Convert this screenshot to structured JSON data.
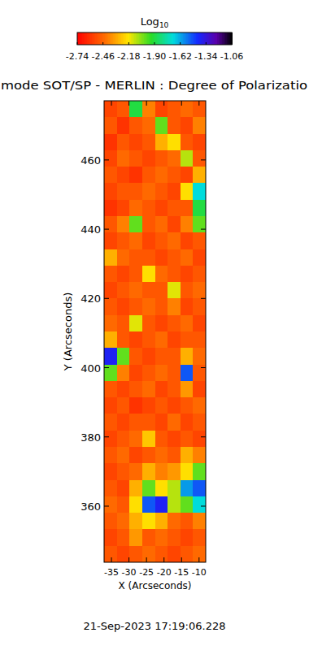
{
  "chart_data": {
    "type": "heatmap",
    "title": "mode SOT/SP - MERLIN : Degree of Polarizatio",
    "xlabel": "X (Arcseconds)",
    "ylabel": "Y (Arcseconds)",
    "date": "21-Sep-2023 17:19:06.228",
    "xlim": [
      -37.1,
      -8.1
    ],
    "ylim": [
      343.8,
      477.1
    ],
    "xticks": [
      -35,
      -30,
      -25,
      -20,
      -15,
      -10
    ],
    "yticks": [
      360,
      380,
      400,
      420,
      440,
      460
    ],
    "color_label": "Log10",
    "color_range": [
      -2.74,
      -1.06
    ],
    "color_ticks": [
      -2.74,
      -2.46,
      -2.18,
      {
        "value": -1.9,
        "label": "-1.90"
      },
      -1.62,
      -1.34,
      -1.06
    ],
    "cells": [
      [
        -2.55,
        -2.5,
        -1.9,
        -2.4,
        -2.55,
        -2.5,
        -2.45,
        -2.5
      ],
      [
        -2.5,
        -2.6,
        -2.5,
        -2.45,
        -2.0,
        -2.5,
        -2.55,
        -2.4
      ],
      [
        -2.6,
        -2.5,
        -2.55,
        -2.5,
        -2.3,
        -2.2,
        -2.5,
        -2.55
      ],
      [
        -2.55,
        -2.45,
        -2.5,
        -2.55,
        -2.5,
        -2.45,
        -2.1,
        -2.5
      ],
      [
        -2.5,
        -2.55,
        -2.6,
        -2.5,
        -2.45,
        -2.5,
        -2.55,
        -2.3
      ],
      [
        -2.55,
        -2.5,
        -2.5,
        -2.45,
        -2.5,
        -2.55,
        -2.2,
        -1.7
      ],
      [
        -2.6,
        -2.55,
        -2.45,
        -2.5,
        -2.55,
        -2.5,
        -2.5,
        -1.9
      ],
      [
        -2.5,
        -2.4,
        -2.0,
        -2.5,
        -2.45,
        -2.55,
        -2.4,
        -2.0
      ],
      [
        -2.55,
        -2.5,
        -2.45,
        -2.55,
        -2.5,
        -2.45,
        -2.55,
        -2.5
      ],
      [
        -2.3,
        -2.45,
        -2.5,
        -2.5,
        -2.55,
        -2.5,
        -2.45,
        -2.55
      ],
      [
        -2.5,
        -2.55,
        -2.5,
        -2.2,
        -2.45,
        -2.5,
        -2.55,
        -2.5
      ],
      [
        -2.55,
        -2.5,
        -2.45,
        -2.5,
        -2.5,
        -2.15,
        -2.5,
        -2.45
      ],
      [
        -2.5,
        -2.55,
        -2.5,
        -2.45,
        -2.5,
        -2.4,
        -2.55,
        -2.5
      ],
      [
        -2.45,
        -2.5,
        -2.15,
        -2.5,
        -2.55,
        -2.5,
        -2.45,
        -2.55
      ],
      [
        -2.3,
        -2.5,
        -2.55,
        -2.5,
        -2.45,
        -2.55,
        -2.5,
        -2.5
      ],
      [
        -1.4,
        -2.0,
        -2.5,
        -2.55,
        -2.5,
        -2.5,
        -2.3,
        -2.45
      ],
      [
        -2.0,
        -2.4,
        -2.55,
        -2.5,
        -2.45,
        -2.5,
        -1.5,
        -2.5
      ],
      [
        -2.5,
        -2.55,
        -2.5,
        -2.45,
        -2.55,
        -2.5,
        -2.35,
        -2.55
      ],
      [
        -2.55,
        -2.5,
        -2.6,
        -2.55,
        -2.5,
        -2.55,
        -2.5,
        -2.45
      ],
      [
        -2.5,
        -2.55,
        -2.5,
        -2.5,
        -2.55,
        -2.45,
        -2.55,
        -2.5
      ],
      [
        -2.55,
        -2.5,
        -2.45,
        -2.25,
        -2.5,
        -2.55,
        -2.5,
        -2.55
      ],
      [
        -2.5,
        -2.45,
        -2.55,
        -2.5,
        -2.45,
        -2.5,
        -2.3,
        -2.4
      ],
      [
        -2.55,
        -2.5,
        -2.45,
        -2.3,
        -2.4,
        -2.35,
        -2.2,
        -2.0
      ],
      [
        -2.5,
        -2.55,
        -2.3,
        -2.0,
        -2.2,
        -2.1,
        -1.6,
        -1.5
      ],
      [
        -2.45,
        -2.5,
        -2.2,
        -1.5,
        -1.4,
        -2.1,
        -2.0,
        -1.7
      ],
      [
        -2.5,
        -2.45,
        -2.3,
        -2.2,
        -2.3,
        -2.45,
        -2.5,
        -2.4
      ],
      [
        -2.55,
        -2.5,
        -2.35,
        -2.5,
        -2.45,
        -2.5,
        -2.55,
        -2.5
      ],
      [
        -2.5,
        -2.55,
        -2.5,
        -2.45,
        -2.5,
        -2.55,
        -2.5,
        -2.45
      ]
    ]
  }
}
